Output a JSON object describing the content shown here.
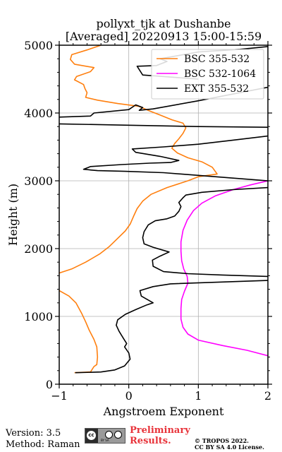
{
  "chart_data": {
    "type": "line",
    "title_line1": "pollyxt_tjk at Dushanbe",
    "title_line2": "[Averaged] 20220913 15:00-15:59",
    "xlabel": "Angstroem Exponent",
    "ylabel": "Height (m)",
    "xlim": [
      -1,
      2
    ],
    "ylim": [
      0,
      5000
    ],
    "x_ticks": [
      "−1",
      "0",
      "1",
      "2"
    ],
    "y_ticks": [
      "0",
      "1000",
      "2000",
      "3000",
      "4000",
      "5000"
    ],
    "grid": true,
    "legend_position": "top-right",
    "series": [
      {
        "name": "BSC 355-532",
        "color": "#ff7f0e",
        "points": [
          [
            -0.78,
            170
          ],
          [
            -0.55,
            180
          ],
          [
            -0.5,
            260
          ],
          [
            -0.46,
            290
          ],
          [
            -0.45,
            400
          ],
          [
            -0.46,
            550
          ],
          [
            -0.5,
            660
          ],
          [
            -0.57,
            800
          ],
          [
            -0.62,
            920
          ],
          [
            -0.68,
            1050
          ],
          [
            -0.76,
            1200
          ],
          [
            -0.86,
            1300
          ],
          [
            -1.0,
            1380
          ]
        ]
      },
      {
        "name": "BSC 355-532",
        "color": "#ff7f0e",
        "points": [
          [
            -1.0,
            1640
          ],
          [
            -0.82,
            1700
          ],
          [
            -0.62,
            1800
          ],
          [
            -0.42,
            1920
          ],
          [
            -0.28,
            2030
          ],
          [
            -0.15,
            2160
          ],
          [
            -0.05,
            2260
          ],
          [
            0.02,
            2360
          ],
          [
            0.07,
            2480
          ],
          [
            0.12,
            2590
          ],
          [
            0.2,
            2700
          ],
          [
            0.32,
            2800
          ],
          [
            0.55,
            2900
          ],
          [
            0.85,
            3000
          ],
          [
            1.0,
            3060
          ],
          [
            1.27,
            3100
          ],
          [
            1.2,
            3200
          ],
          [
            1.05,
            3280
          ],
          [
            0.85,
            3340
          ],
          [
            0.7,
            3410
          ],
          [
            0.62,
            3480
          ],
          [
            0.66,
            3550
          ],
          [
            0.72,
            3620
          ],
          [
            0.78,
            3700
          ],
          [
            0.82,
            3780
          ],
          [
            0.78,
            3850
          ],
          [
            0.62,
            3900
          ],
          [
            0.45,
            3970
          ],
          [
            0.3,
            4030
          ],
          [
            0.14,
            4100
          ],
          [
            -0.16,
            4140
          ],
          [
            -0.45,
            4190
          ],
          [
            -0.62,
            4230
          ],
          [
            -0.6,
            4300
          ],
          [
            -0.63,
            4360
          ],
          [
            -0.65,
            4420
          ],
          [
            -0.78,
            4490
          ],
          [
            -0.75,
            4540
          ],
          [
            -0.55,
            4610
          ],
          [
            -0.5,
            4670
          ],
          [
            -0.78,
            4720
          ],
          [
            -0.84,
            4790
          ],
          [
            -0.82,
            4860
          ],
          [
            -0.6,
            4930
          ],
          [
            -0.4,
            5000
          ]
        ]
      },
      {
        "name": "BSC 532-1064",
        "color": "#ff00ff",
        "points": [
          [
            2.0,
            420
          ],
          [
            1.7,
            500
          ],
          [
            1.35,
            570
          ],
          [
            1.0,
            650
          ],
          [
            0.85,
            740
          ],
          [
            0.78,
            840
          ],
          [
            0.75,
            960
          ],
          [
            0.75,
            1120
          ],
          [
            0.76,
            1250
          ],
          [
            0.8,
            1370
          ],
          [
            0.85,
            1490
          ],
          [
            0.84,
            1590
          ],
          [
            0.79,
            1700
          ],
          [
            0.76,
            1820
          ],
          [
            0.75,
            1960
          ],
          [
            0.75,
            2100
          ],
          [
            0.78,
            2270
          ],
          [
            0.84,
            2420
          ],
          [
            0.93,
            2560
          ],
          [
            1.05,
            2670
          ],
          [
            1.25,
            2780
          ],
          [
            1.5,
            2870
          ],
          [
            1.75,
            2940
          ],
          [
            2.0,
            3000
          ]
        ]
      },
      {
        "name": "EXT 355-532",
        "color": "#000000",
        "points": [
          [
            -0.77,
            170
          ],
          [
            -0.4,
            180
          ],
          [
            -0.2,
            210
          ],
          [
            -0.06,
            270
          ],
          [
            0.02,
            370
          ],
          [
            0.0,
            460
          ],
          [
            -0.06,
            550
          ],
          [
            -0.03,
            600
          ],
          [
            -0.08,
            680
          ],
          [
            -0.14,
            780
          ],
          [
            -0.18,
            870
          ],
          [
            -0.16,
            950
          ],
          [
            -0.05,
            1030
          ],
          [
            0.1,
            1100
          ],
          [
            0.26,
            1170
          ],
          [
            0.35,
            1200
          ],
          [
            0.18,
            1300
          ],
          [
            0.16,
            1380
          ],
          [
            0.35,
            1440
          ],
          [
            0.6,
            1480
          ],
          [
            2.0,
            1530
          ]
        ]
      },
      {
        "name": "EXT 355-532",
        "color": "#000000",
        "points": [
          [
            2.0,
            1590
          ],
          [
            1.35,
            1610
          ],
          [
            0.85,
            1630
          ],
          [
            0.5,
            1660
          ],
          [
            0.35,
            1740
          ],
          [
            0.34,
            1830
          ],
          [
            0.45,
            1890
          ],
          [
            0.58,
            1950
          ],
          [
            0.35,
            2020
          ],
          [
            0.22,
            2070
          ],
          [
            0.2,
            2160
          ],
          [
            0.22,
            2250
          ],
          [
            0.28,
            2350
          ],
          [
            0.38,
            2410
          ],
          [
            0.55,
            2440
          ],
          [
            0.66,
            2480
          ],
          [
            0.72,
            2550
          ],
          [
            0.75,
            2620
          ],
          [
            0.72,
            2680
          ],
          [
            0.78,
            2750
          ],
          [
            0.82,
            2790
          ],
          [
            1.05,
            2830
          ],
          [
            1.5,
            2870
          ],
          [
            2.0,
            2900
          ]
        ]
      },
      {
        "name": "EXT 355-532",
        "color": "#000000",
        "points": [
          [
            2.0,
            3000
          ],
          [
            1.5,
            3040
          ],
          [
            1.0,
            3080
          ],
          [
            0.5,
            3120
          ],
          [
            -0.05,
            3140
          ],
          [
            -0.45,
            3150
          ],
          [
            -0.65,
            3170
          ],
          [
            -0.55,
            3210
          ],
          [
            -0.1,
            3240
          ],
          [
            0.3,
            3260
          ],
          [
            0.6,
            3270
          ],
          [
            0.72,
            3300
          ],
          [
            0.45,
            3360
          ],
          [
            0.1,
            3420
          ],
          [
            0.05,
            3470
          ],
          [
            0.5,
            3500
          ],
          [
            1.0,
            3540
          ],
          [
            1.5,
            3600
          ],
          [
            2.0,
            3660
          ]
        ]
      },
      {
        "name": "EXT 355-532",
        "color": "#000000",
        "points": [
          [
            -1.0,
            3840
          ],
          [
            0.0,
            3820
          ],
          [
            1.0,
            3800
          ],
          [
            2.0,
            3790
          ]
        ]
      },
      {
        "name": "EXT 355-532",
        "color": "#000000",
        "points": [
          [
            -1.0,
            3940
          ],
          [
            -0.55,
            3955
          ],
          [
            -0.5,
            4000
          ],
          [
            0.0,
            4050
          ],
          [
            0.1,
            4120
          ],
          [
            0.2,
            4080
          ],
          [
            0.15,
            4040
          ],
          [
            0.35,
            4060
          ],
          [
            1.0,
            4180
          ],
          [
            1.6,
            4300
          ],
          [
            2.0,
            4380
          ]
        ]
      },
      {
        "name": "EXT 355-532",
        "color": "#000000",
        "points": [
          [
            1.0,
            4500
          ],
          [
            0.2,
            4560
          ],
          [
            0.12,
            4690
          ],
          [
            0.4,
            4700
          ],
          [
            0.55,
            4760
          ],
          [
            0.45,
            4800
          ],
          [
            1.0,
            4900
          ],
          [
            1.6,
            4940
          ],
          [
            2.0,
            4980
          ]
        ]
      }
    ],
    "legend": [
      {
        "label": "BSC 355-532",
        "color": "#ff7f0e"
      },
      {
        "label": "BSC 532-1064",
        "color": "#ff00ff"
      },
      {
        "label": "EXT 355-532",
        "color": "#000000"
      }
    ]
  },
  "footer": {
    "version": "Version: 3.5",
    "method": "Method: Raman",
    "preliminary_line1": "Preliminary",
    "preliminary_line2": "Results.",
    "copyright_line1": "© TROPOS 2022.",
    "copyright_line2": "CC BY SA 4.0 License.",
    "license_badge_text": "BY SA",
    "license_badge_cc": "cc"
  }
}
